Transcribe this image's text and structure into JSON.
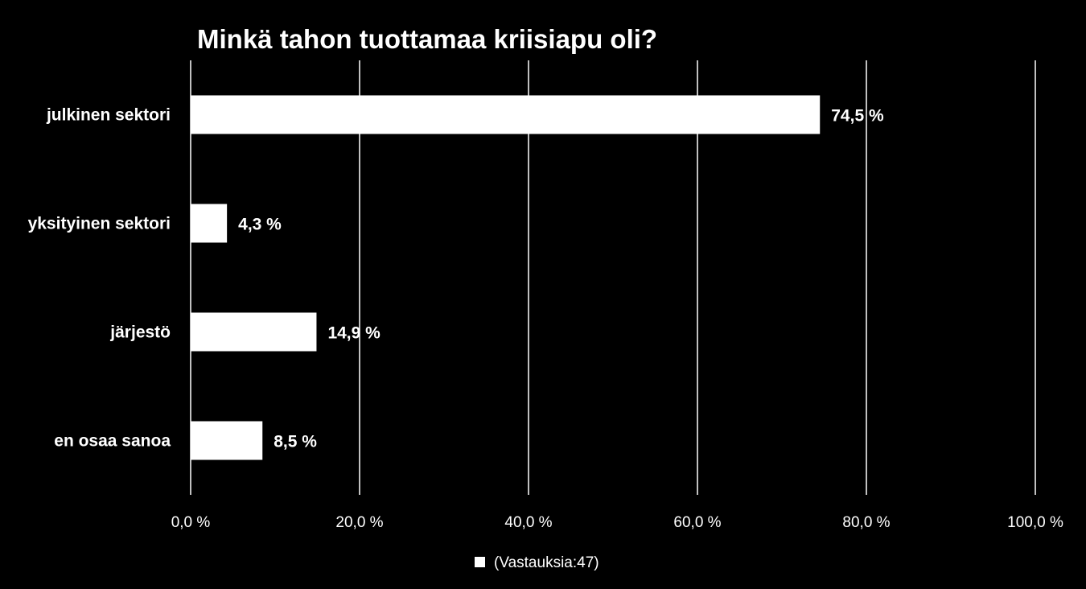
{
  "chart_data": {
    "type": "bar",
    "orientation": "horizontal",
    "title": "Minkä tahon tuottamaa kriisiapu oli?",
    "categories": [
      "julkinen sektori",
      "yksityinen sektori",
      "järjestö",
      "en osaa sanoa"
    ],
    "series": [
      {
        "name": "(Vastauksia:47)",
        "values": [
          74.5,
          4.3,
          14.9,
          8.5
        ],
        "labels": [
          "74,5 %",
          "4,3 %",
          "14,9 %",
          "8,5 %"
        ]
      }
    ],
    "xlim": [
      0,
      100
    ],
    "xticks": [
      0,
      20,
      40,
      60,
      80,
      100
    ],
    "xtick_labels": [
      "0,0 %",
      "20,0 %",
      "40,0 %",
      "60,0 %",
      "80,0 %",
      "100,0 %"
    ],
    "grid": true,
    "legend": "bottom",
    "colors": {
      "background": "#000000",
      "bar": "#ffffff",
      "text": "#ffffff",
      "grid": "#ffffff"
    }
  }
}
